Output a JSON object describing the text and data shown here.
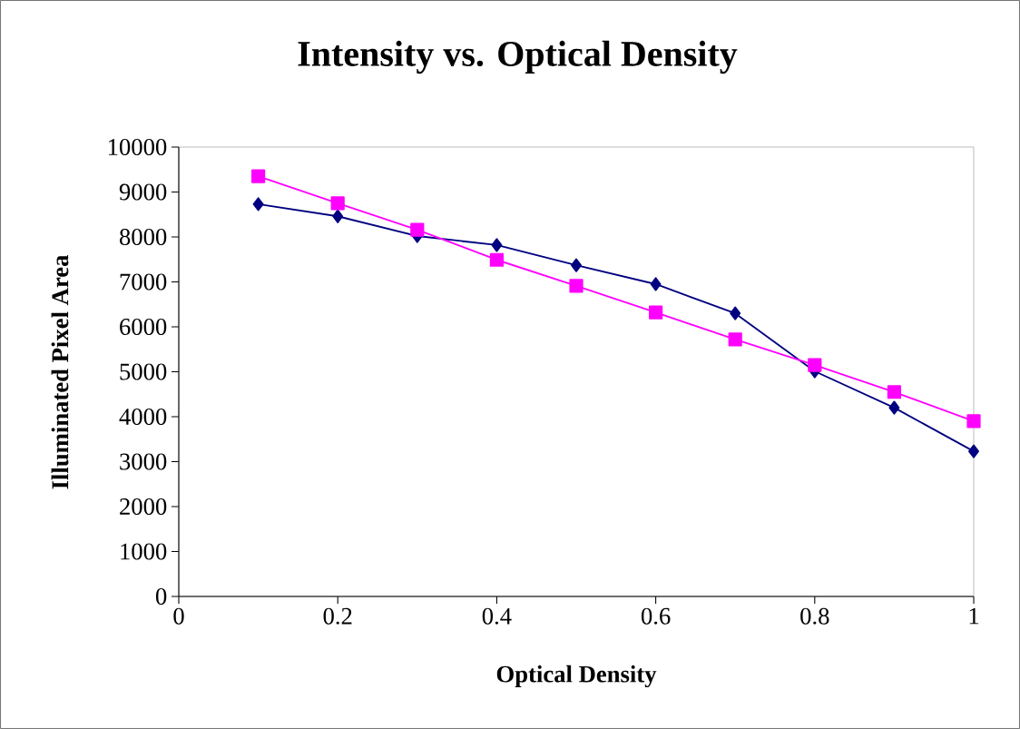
{
  "chart_data": {
    "type": "line",
    "title": "Intensity vs. Optical Density",
    "xlabel": "Optical Density",
    "ylabel": "Illuminated Pixel Area",
    "x": [
      0.1,
      0.2,
      0.3,
      0.4,
      0.5,
      0.6,
      0.7,
      0.8,
      0.9,
      1.0
    ],
    "series": [
      {
        "color": "#000080",
        "marker": "diamond",
        "values": [
          8730,
          8460,
          8020,
          7820,
          7370,
          6950,
          6300,
          5010,
          4200,
          3230
        ]
      },
      {
        "color": "#ff00ff",
        "marker": "square",
        "values": [
          9350,
          8750,
          8160,
          7490,
          6910,
          6320,
          5720,
          5150,
          4550,
          3900
        ]
      }
    ],
    "xlim": [
      0,
      1
    ],
    "xticks": [
      0,
      0.2,
      0.4,
      0.6,
      0.8,
      1
    ],
    "ylim": [
      0,
      10000
    ],
    "yticks": [
      0,
      1000,
      2000,
      3000,
      4000,
      5000,
      6000,
      7000,
      8000,
      9000,
      10000
    ],
    "grid": false,
    "line_style": "solid"
  }
}
